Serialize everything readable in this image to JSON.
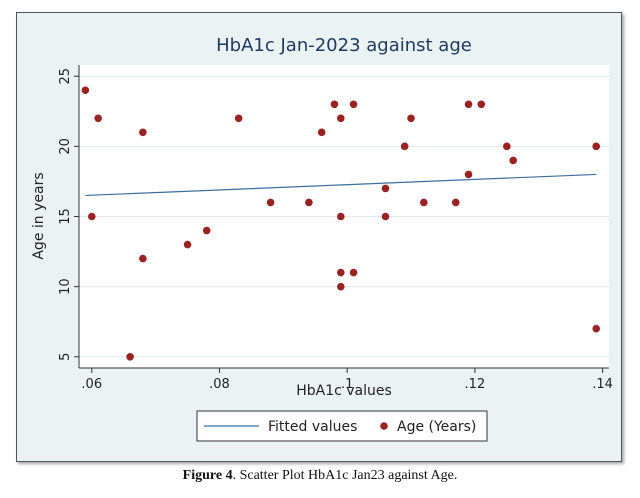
{
  "chart_data": {
    "type": "scatter",
    "title": "HbA1c Jan-2023 against age",
    "xlabel": "HbA1c values",
    "ylabel": "Age in years",
    "xlim": [
      0.058,
      0.141
    ],
    "ylim": [
      4.2,
      25.8
    ],
    "x_ticks": [
      0.06,
      0.08,
      0.1,
      0.12,
      0.14
    ],
    "x_tick_labels": [
      ".06",
      ".08",
      ".1",
      ".12",
      ".14"
    ],
    "y_ticks": [
      5,
      10,
      15,
      20,
      25
    ],
    "y_tick_labels": [
      "5",
      "10",
      "15",
      "20",
      "25"
    ],
    "grid": "horizontal",
    "legend_position": "bottom",
    "series": [
      {
        "name": "Age (Years)",
        "kind": "points",
        "color": "#9b2223",
        "points": [
          [
            0.059,
            24
          ],
          [
            0.06,
            15
          ],
          [
            0.061,
            22
          ],
          [
            0.066,
            5
          ],
          [
            0.068,
            21
          ],
          [
            0.068,
            12
          ],
          [
            0.075,
            13
          ],
          [
            0.078,
            14
          ],
          [
            0.083,
            22
          ],
          [
            0.088,
            16
          ],
          [
            0.094,
            16
          ],
          [
            0.096,
            21
          ],
          [
            0.098,
            23
          ],
          [
            0.099,
            22
          ],
          [
            0.099,
            15
          ],
          [
            0.099,
            11
          ],
          [
            0.099,
            10
          ],
          [
            0.101,
            23
          ],
          [
            0.101,
            11
          ],
          [
            0.106,
            17
          ],
          [
            0.106,
            15
          ],
          [
            0.109,
            20
          ],
          [
            0.11,
            22
          ],
          [
            0.112,
            16
          ],
          [
            0.117,
            16
          ],
          [
            0.119,
            23
          ],
          [
            0.119,
            18
          ],
          [
            0.121,
            23
          ],
          [
            0.125,
            20
          ],
          [
            0.126,
            19
          ],
          [
            0.139,
            20
          ],
          [
            0.139,
            7
          ]
        ]
      },
      {
        "name": "Fitted values",
        "kind": "line",
        "color": "#3d6e9e",
        "points": [
          [
            0.059,
            16.5
          ],
          [
            0.139,
            18.0
          ]
        ]
      }
    ]
  },
  "caption": {
    "label": "Figure 4",
    "text": ". Scatter Plot HbA1c Jan23 against Age."
  }
}
